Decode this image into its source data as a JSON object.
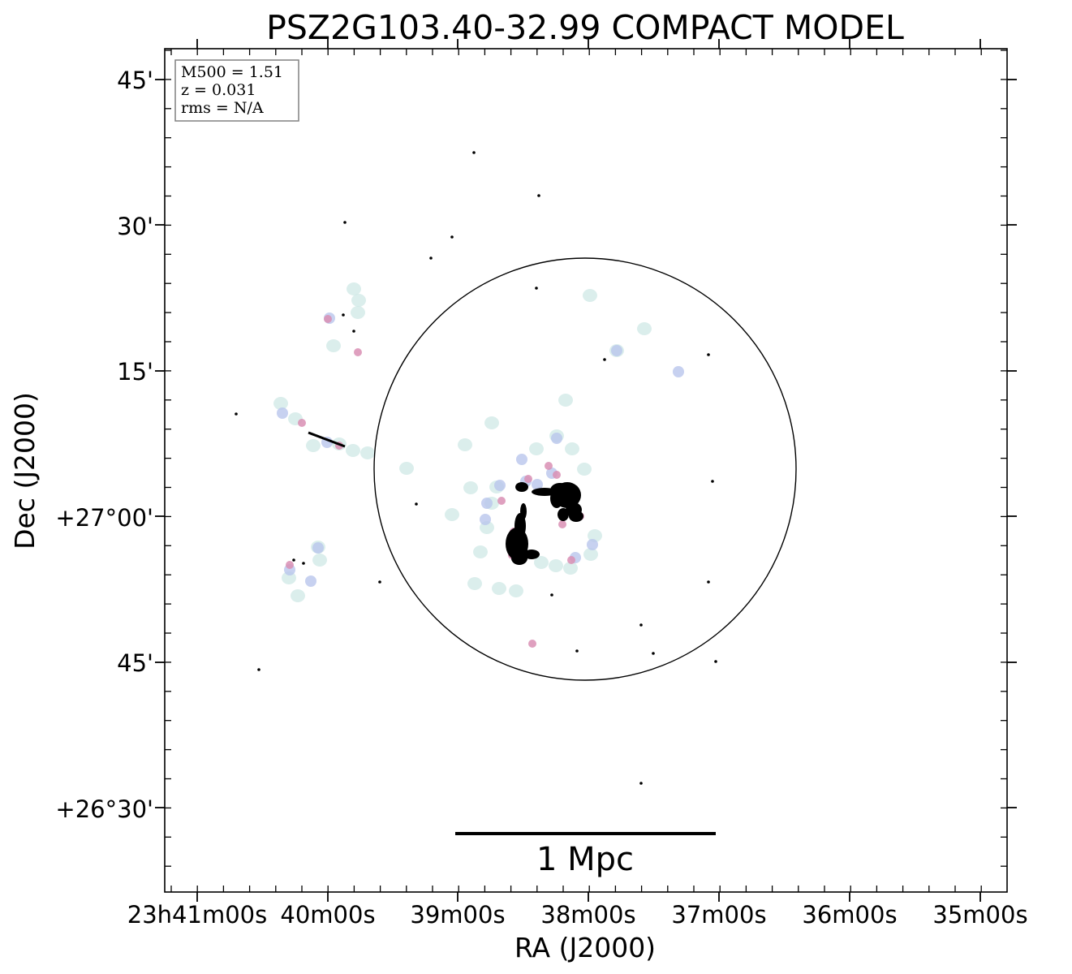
{
  "title": "PSZ2G103.40-32.99 COMPACT MODEL",
  "info_box": {
    "lines": [
      "M500 = 1.51",
      "z = 0.031",
      "rms = N/A"
    ]
  },
  "x_axis": {
    "label": "RA (J2000)",
    "tick_labels": [
      "23h41m00s",
      "40m00s",
      "39m00s",
      "38m00s",
      "37m00s",
      "36m00s",
      "35m00s"
    ]
  },
  "y_axis": {
    "label": "Dec (J2000)",
    "tick_labels": [
      "45'",
      "30'",
      "15'",
      "+27°00'",
      "45'",
      "+26°30'"
    ]
  },
  "scale_bar": {
    "label": "1 Mpc"
  },
  "colors": {
    "frame": "#000000",
    "circle": "#000000",
    "info_box_border": "#808080",
    "emission_faint": "#cfe8e6",
    "emission_blue": "#b9c6ec",
    "emission_pink": "#d98fb4",
    "emission_core": "#000000"
  }
}
